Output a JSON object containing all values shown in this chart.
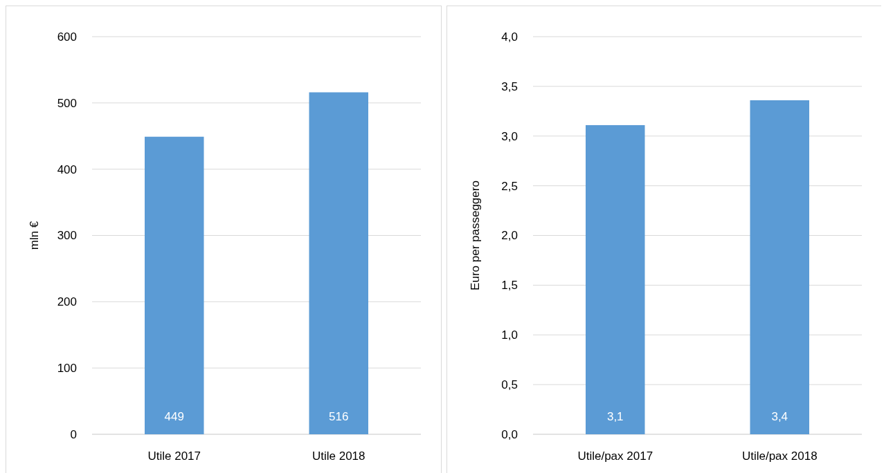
{
  "chart_data": [
    {
      "type": "bar",
      "ylabel": "mln €",
      "categories": [
        "Utile 2017",
        "Utile 2018"
      ],
      "values": [
        449,
        516
      ],
      "color": "#5b9bd5",
      "ylim": [
        0,
        600
      ],
      "yticks": [
        0,
        100,
        200,
        300,
        400,
        500,
        600
      ],
      "grid": "y",
      "data_labels": true
    },
    {
      "type": "bar",
      "ylabel": "Euro per passeggero",
      "categories": [
        "Utile/pax 2017",
        "Utile/pax 2018"
      ],
      "values": [
        3.11,
        3.36
      ],
      "value_labels": [
        "3,1",
        "3,4"
      ],
      "color": "#5b9bd5",
      "ylim": [
        0,
        4
      ],
      "yticks": [
        {
          "value": 0,
          "label": "0,0"
        },
        {
          "value": 0.5,
          "label": "0,5"
        },
        {
          "value": 1,
          "label": "1,0"
        },
        {
          "value": 1.5,
          "label": "1,5"
        },
        {
          "value": 2,
          "label": "2,0"
        },
        {
          "value": 2.5,
          "label": "2,5"
        },
        {
          "value": 3,
          "label": "3,0"
        },
        {
          "value": 3.5,
          "label": "3,5"
        },
        {
          "value": 4,
          "label": "4,0"
        }
      ],
      "grid": "y"
    }
  ]
}
